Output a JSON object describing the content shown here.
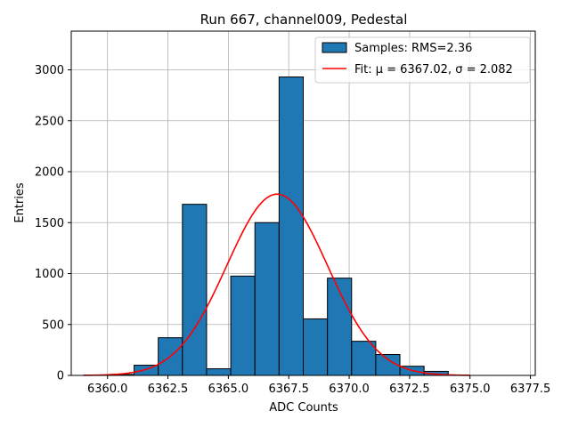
{
  "chart_data": {
    "type": "bar",
    "title": "Run 667, channel009, Pedestal",
    "xlabel": "ADC Counts",
    "ylabel": "Entries",
    "xlim": [
      6358.5,
      6377.7
    ],
    "ylim": [
      0,
      3380
    ],
    "grid": true,
    "legend_position": "top-right",
    "colors": {
      "bar_fill": "#1f77b4",
      "bar_edge": "#000000",
      "fit_line": "#ff0000",
      "grid": "#b0b0b0"
    },
    "x_ticks": [
      6360.0,
      6362.5,
      6365.0,
      6367.5,
      6370.0,
      6372.5,
      6375.0,
      6377.5
    ],
    "x_tick_labels": [
      "6360.0",
      "6362.5",
      "6365.0",
      "6367.5",
      "6370.0",
      "6372.5",
      "6375.0",
      "6377.5"
    ],
    "y_ticks": [
      0,
      500,
      1000,
      1500,
      2000,
      2500,
      3000
    ],
    "y_tick_labels": [
      "0",
      "500",
      "1000",
      "1500",
      "2000",
      "2500",
      "3000"
    ],
    "bins": [
      {
        "left": 6360.1,
        "right": 6361.1,
        "count": 10
      },
      {
        "left": 6361.1,
        "right": 6362.1,
        "count": 100
      },
      {
        "left": 6362.1,
        "right": 6363.1,
        "count": 370
      },
      {
        "left": 6363.1,
        "right": 6364.1,
        "count": 1680
      },
      {
        "left": 6364.1,
        "right": 6365.1,
        "count": 65
      },
      {
        "left": 6365.1,
        "right": 6366.1,
        "count": 975
      },
      {
        "left": 6366.1,
        "right": 6367.1,
        "count": 1500
      },
      {
        "left": 6367.1,
        "right": 6368.1,
        "count": 2930
      },
      {
        "left": 6368.1,
        "right": 6369.1,
        "count": 555
      },
      {
        "left": 6369.1,
        "right": 6370.1,
        "count": 955
      },
      {
        "left": 6370.1,
        "right": 6371.1,
        "count": 335
      },
      {
        "left": 6371.1,
        "right": 6372.1,
        "count": 205
      },
      {
        "left": 6372.1,
        "right": 6373.1,
        "count": 90
      },
      {
        "left": 6373.1,
        "right": 6374.1,
        "count": 40
      }
    ],
    "fit": {
      "mu": 6367.02,
      "sigma": 2.082,
      "amplitude": 1780,
      "x_range": [
        6359.0,
        6375.0
      ]
    },
    "legend": [
      {
        "label": "Samples: RMS=2.36",
        "kind": "patch"
      },
      {
        "label": "Fit: μ = 6367.02, σ = 2.082",
        "kind": "line"
      }
    ]
  }
}
